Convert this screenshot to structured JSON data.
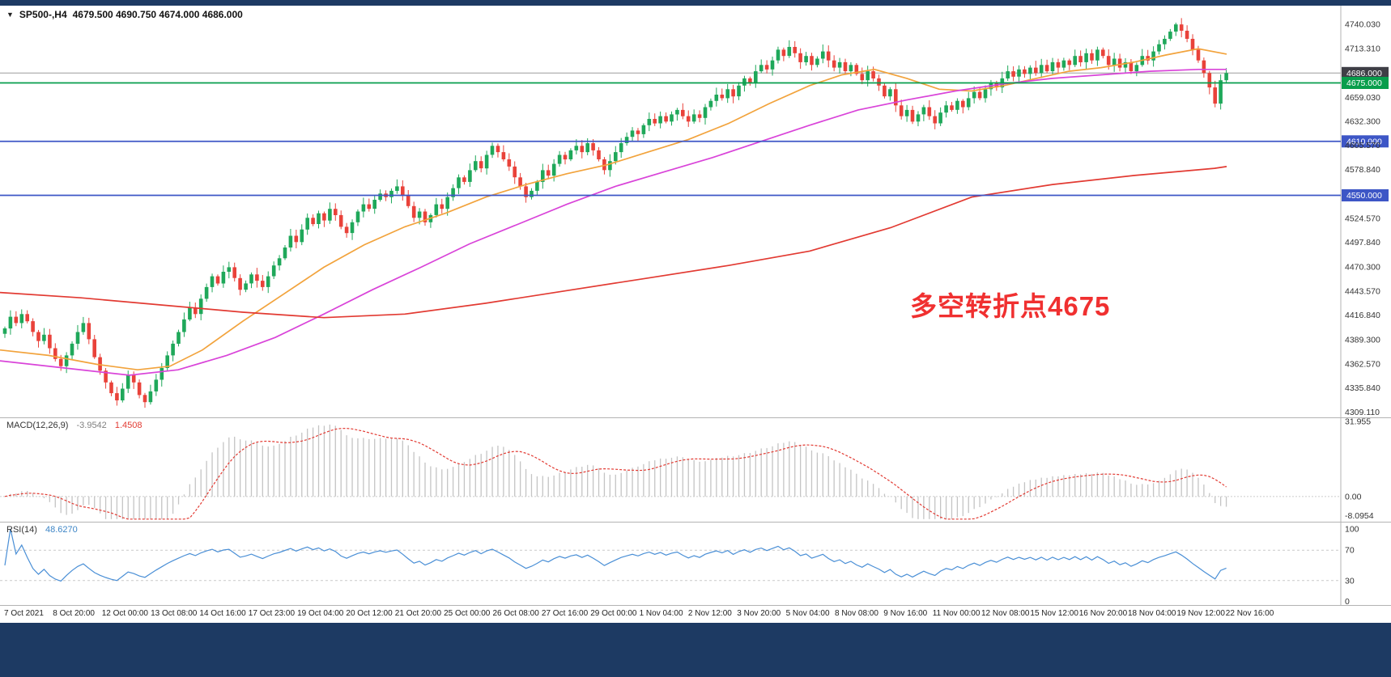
{
  "window": {
    "symbol_label": "SP500-,H4",
    "ohlc_values": "4679.500 4690.750 4674.000 4686.000"
  },
  "annotation": {
    "text": "多空转折点4675",
    "color": "#f03030"
  },
  "chart_data": [
    {
      "type": "candlestick",
      "name": "SP500-,H4",
      "timeframe": "H4",
      "ylim": [
        4304,
        4760
      ],
      "up_color": "#1fa85a",
      "down_color": "#e9423a",
      "x_labels": [
        "7 Oct 2021",
        "8 Oct 20:00",
        "12 Oct 00:00",
        "13 Oct 08:00",
        "14 Oct 16:00",
        "17 Oct 23:00",
        "19 Oct 04:00",
        "20 Oct 12:00",
        "21 Oct 20:00",
        "25 Oct 00:00",
        "26 Oct 08:00",
        "27 Oct 16:00",
        "29 Oct 00:00",
        "1 Nov 04:00",
        "2 Nov 12:00",
        "3 Nov 20:00",
        "5 Nov 04:00",
        "8 Nov 08:00",
        "9 Nov 16:00",
        "11 Nov 00:00",
        "12 Nov 08:00",
        "15 Nov 12:00",
        "16 Nov 20:00",
        "18 Nov 04:00",
        "19 Nov 12:00",
        "22 Nov 16:00"
      ],
      "y_axis_labels": [
        {
          "v": 4740.03,
          "t": "4740.030"
        },
        {
          "v": 4713.31,
          "t": "4713.310"
        },
        {
          "v": 4659.03,
          "t": "4659.030"
        },
        {
          "v": 4632.3,
          "t": "4632.300"
        },
        {
          "v": 4605.57,
          "t": "4605.570"
        },
        {
          "v": 4578.84,
          "t": "4578.840"
        },
        {
          "v": 4524.57,
          "t": "4524.570"
        },
        {
          "v": 4497.84,
          "t": "4497.840"
        },
        {
          "v": 4470.3,
          "t": "4470.300"
        },
        {
          "v": 4443.57,
          "t": "4443.570"
        },
        {
          "v": 4416.84,
          "t": "4416.840"
        },
        {
          "v": 4389.3,
          "t": "4389.300"
        },
        {
          "v": 4362.57,
          "t": "4362.570"
        },
        {
          "v": 4335.84,
          "t": "4335.840"
        },
        {
          "v": 4309.11,
          "t": "4309.110"
        }
      ],
      "current_bar": {
        "open": 4679.5,
        "high": 4690.75,
        "low": 4674.0,
        "close": 4686.0
      },
      "closes": [
        4402,
        4415,
        4408,
        4418,
        4410,
        4398,
        4388,
        4395,
        4380,
        4368,
        4360,
        4372,
        4385,
        4398,
        4408,
        4390,
        4370,
        4355,
        4342,
        4330,
        4322,
        4335,
        4350,
        4342,
        4328,
        4320,
        4332,
        4345,
        4358,
        4372,
        4385,
        4398,
        4412,
        4425,
        4418,
        4435,
        4448,
        4460,
        4452,
        4465,
        4470,
        4458,
        4445,
        4452,
        4462,
        4455,
        4448,
        4460,
        4472,
        4480,
        4492,
        4505,
        4498,
        4512,
        4525,
        4518,
        4530,
        4522,
        4535,
        4528,
        4515,
        4508,
        4520,
        4532,
        4540,
        4535,
        4545,
        4552,
        4548,
        4555,
        4560,
        4550,
        4538,
        4525,
        4532,
        4520,
        4528,
        4540,
        4535,
        4548,
        4558,
        4570,
        4565,
        4578,
        4588,
        4580,
        4595,
        4605,
        4598,
        4590,
        4582,
        4570,
        4560,
        4548,
        4555,
        4565,
        4578,
        4572,
        4585,
        4595,
        4590,
        4600,
        4605,
        4598,
        4608,
        4600,
        4590,
        4578,
        4588,
        4598,
        4608,
        4615,
        4622,
        4618,
        4628,
        4635,
        4630,
        4638,
        4632,
        4640,
        4645,
        4638,
        4632,
        4640,
        4636,
        4648,
        4655,
        4662,
        4658,
        4668,
        4660,
        4672,
        4680,
        4675,
        4688,
        4695,
        4690,
        4700,
        4712,
        4705,
        4715,
        4708,
        4698,
        4705,
        4695,
        4702,
        4710,
        4700,
        4692,
        4698,
        4688,
        4695,
        4685,
        4678,
        4688,
        4680,
        4672,
        4660,
        4668,
        4650,
        4638,
        4645,
        4632,
        4640,
        4648,
        4638,
        4630,
        4642,
        4650,
        4645,
        4655,
        4648,
        4658,
        4665,
        4658,
        4668,
        4675,
        4670,
        4680,
        4688,
        4682,
        4690,
        4685,
        4692,
        4686,
        4695,
        4688,
        4698,
        4692,
        4700,
        4695,
        4705,
        4698,
        4708,
        4700,
        4712,
        4705,
        4695,
        4702,
        4692,
        4698,
        4688,
        4695,
        4705,
        4700,
        4710,
        4718,
        4724,
        4732,
        4740,
        4733,
        4724,
        4712,
        4700,
        4686,
        4670,
        4652,
        4678,
        4686
      ],
      "overlays": [
        {
          "name": "ma-fast-line",
          "color": "#f2a33c",
          "points": [
            [
              0,
              4378
            ],
            [
              60,
              4372
            ],
            [
              120,
              4362
            ],
            [
              170,
              4356
            ],
            [
              210,
              4360
            ],
            [
              250,
              4378
            ],
            [
              300,
              4410
            ],
            [
              350,
              4440
            ],
            [
              400,
              4470
            ],
            [
              450,
              4495
            ],
            [
              500,
              4515
            ],
            [
              550,
              4530
            ],
            [
              600,
              4548
            ],
            [
              650,
              4562
            ],
            [
              700,
              4574
            ],
            [
              750,
              4584
            ],
            [
              800,
              4598
            ],
            [
              850,
              4612
            ],
            [
              900,
              4630
            ],
            [
              950,
              4652
            ],
            [
              1000,
              4672
            ],
            [
              1040,
              4684
            ],
            [
              1080,
              4690
            ],
            [
              1120,
              4680
            ],
            [
              1160,
              4668
            ],
            [
              1200,
              4666
            ],
            [
              1240,
              4672
            ],
            [
              1280,
              4680
            ],
            [
              1320,
              4688
            ],
            [
              1360,
              4692
            ],
            [
              1400,
              4698
            ],
            [
              1440,
              4706
            ],
            [
              1480,
              4713
            ],
            [
              1515,
              4707
            ]
          ]
        },
        {
          "name": "ma-medium-line",
          "color": "#d944d9",
          "points": [
            [
              0,
              4366
            ],
            [
              80,
              4358
            ],
            [
              160,
              4350
            ],
            [
              220,
              4356
            ],
            [
              280,
              4372
            ],
            [
              340,
              4392
            ],
            [
              400,
              4418
            ],
            [
              460,
              4445
            ],
            [
              520,
              4470
            ],
            [
              580,
              4496
            ],
            [
              640,
              4518
            ],
            [
              700,
              4540
            ],
            [
              760,
              4560
            ],
            [
              820,
              4576
            ],
            [
              880,
              4592
            ],
            [
              940,
              4610
            ],
            [
              1000,
              4628
            ],
            [
              1060,
              4645
            ],
            [
              1120,
              4656
            ],
            [
              1180,
              4666
            ],
            [
              1240,
              4674
            ],
            [
              1300,
              4680
            ],
            [
              1360,
              4684
            ],
            [
              1420,
              4688
            ],
            [
              1480,
              4690
            ],
            [
              1515,
              4690
            ]
          ]
        },
        {
          "name": "ma-slow-line",
          "color": "#e23a32",
          "points": [
            [
              0,
              4442
            ],
            [
              100,
              4436
            ],
            [
              200,
              4428
            ],
            [
              300,
              4420
            ],
            [
              400,
              4414
            ],
            [
              500,
              4418
            ],
            [
              600,
              4430
            ],
            [
              700,
              4444
            ],
            [
              800,
              4458
            ],
            [
              900,
              4472
            ],
            [
              1000,
              4488
            ],
            [
              1100,
              4514
            ],
            [
              1200,
              4548
            ],
            [
              1300,
              4562
            ],
            [
              1400,
              4572
            ],
            [
              1500,
              4580
            ],
            [
              1515,
              4582
            ]
          ]
        }
      ],
      "hlines": [
        {
          "v": 4686.0,
          "t": "4686.000",
          "color": "#9b9b9b",
          "tag": "#3f3f46",
          "role": "bid-price-line"
        },
        {
          "v": 4675.0,
          "t": "4675.000",
          "color": "#089e4c",
          "tag": "#089e4c",
          "role": "pivot-level-line-4675"
        },
        {
          "v": 4610.0,
          "t": "4610.000",
          "color": "#3d56c6",
          "tag": "#3d56c6",
          "role": "support-level-line-4610"
        },
        {
          "v": 4550.0,
          "t": "4550.000",
          "color": "#3d56c6",
          "tag": "#3d56c6",
          "role": "support-level-line-4550"
        }
      ]
    },
    {
      "type": "macd",
      "name": "MACD(12,26,9)",
      "params": [
        12,
        26,
        9
      ],
      "value_main": "-3.9542",
      "value_signal": "1.4508",
      "scale_top": "31.955",
      "scale_zero": "0.00",
      "scale_bottom": "-8.0954",
      "ylim": [
        -10,
        32.5
      ],
      "histogram_color": "#c4c4c4",
      "signal_color": "#e23a32",
      "source": "derived from candlestick closes"
    },
    {
      "type": "rsi",
      "name": "RSI(14)",
      "period": 14,
      "value": "48.6270",
      "levels": [
        70,
        30
      ],
      "scale_labels": [
        "100",
        "70",
        "30",
        "0"
      ],
      "scale_values": [
        100,
        70,
        30,
        0
      ],
      "ylim": [
        0,
        100
      ],
      "line_color": "#4a8fd6",
      "source": "derived from candlestick closes"
    }
  ]
}
